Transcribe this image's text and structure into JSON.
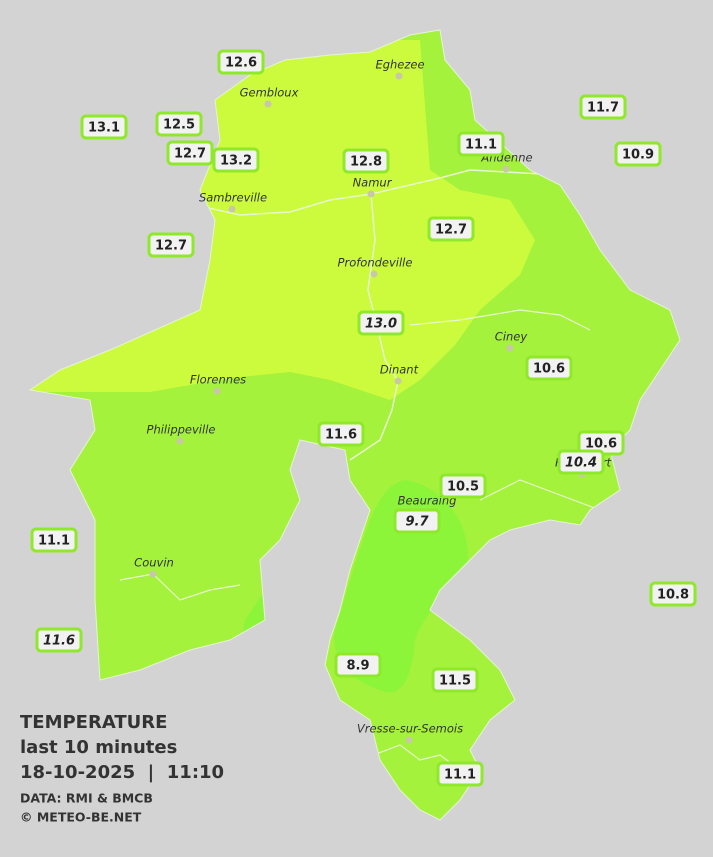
{
  "legend": {
    "title": "TEMPERATURE",
    "period": "last 10 minutes",
    "timestamp": "18-10-2025  |  11:10",
    "source": "DATA: RMI & BMCB",
    "copyright": "© METEO-BE.NET"
  },
  "cities": [
    "Eghezee",
    "Gembloux",
    "Andenne",
    "Namur",
    "Sambreville",
    "Profondeville",
    "Ciney",
    "Dinant",
    "Florennes",
    "Philippeville",
    "Beauraing",
    "Rochefort",
    "Couvin",
    "Vresse-sur-Semois"
  ],
  "readings": [
    "12.6",
    "13.1",
    "12.5",
    "12.7",
    "13.2",
    "12.8",
    "11.1",
    "11.7",
    "10.9",
    "12.7",
    "12.7",
    "13.0",
    "10.6",
    "11.6",
    "10.6",
    "10.4",
    "10.5",
    "9.7",
    "11.1",
    "10.8",
    "11.6",
    "8.9",
    "11.5",
    "11.1"
  ]
}
